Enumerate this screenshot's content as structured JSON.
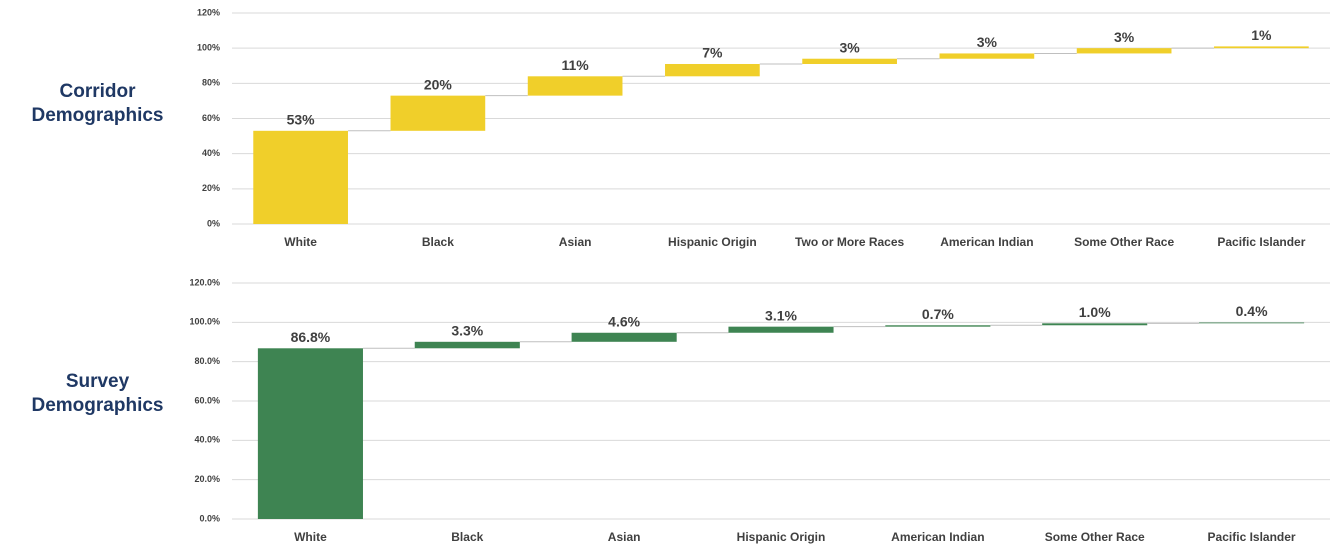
{
  "chart_data": [
    {
      "type": "waterfall",
      "title": "Corridor Demographics",
      "categories": [
        "White",
        "Black",
        "Asian",
        "Hispanic Origin",
        "Two or More Races",
        "American Indian",
        "Some Other Race",
        "Pacific Islander"
      ],
      "values": [
        53,
        20,
        11,
        7,
        3,
        3,
        3,
        1
      ],
      "value_labels": [
        "53%",
        "20%",
        "11%",
        "7%",
        "3%",
        "3%",
        "3%",
        "1%"
      ],
      "color": "#f0cf2a",
      "ylim": [
        0,
        120
      ],
      "yticks": [
        {
          "value": 0,
          "label": "0%"
        },
        {
          "value": 20,
          "label": "20%"
        },
        {
          "value": 40,
          "label": "40%"
        },
        {
          "value": 60,
          "label": "60%"
        },
        {
          "value": 80,
          "label": "80%"
        },
        {
          "value": 100,
          "label": "100%"
        },
        {
          "value": 120,
          "label": "120%"
        }
      ],
      "grid": true
    },
    {
      "type": "waterfall",
      "title": "Survey Demographics",
      "categories": [
        "White",
        "Black",
        "Asian",
        "Hispanic Origin",
        "American Indian",
        "Some Other Race",
        "Pacific Islander"
      ],
      "values": [
        86.8,
        3.3,
        4.6,
        3.1,
        0.7,
        1.0,
        0.4
      ],
      "value_labels": [
        "86.8%",
        "3.3%",
        "4.6%",
        "3.1%",
        "0.7%",
        "1.0%",
        "0.4%"
      ],
      "color": "#3e8452",
      "ylim": [
        0,
        120
      ],
      "yticks": [
        {
          "value": 0,
          "label": "0.0%"
        },
        {
          "value": 20,
          "label": "20.0%"
        },
        {
          "value": 40,
          "label": "40.0%"
        },
        {
          "value": 60,
          "label": "60.0%"
        },
        {
          "value": 80,
          "label": "80.0%"
        },
        {
          "value": 100,
          "label": "100.0%"
        },
        {
          "value": 120,
          "label": "120.0%"
        }
      ],
      "grid": true
    }
  ]
}
